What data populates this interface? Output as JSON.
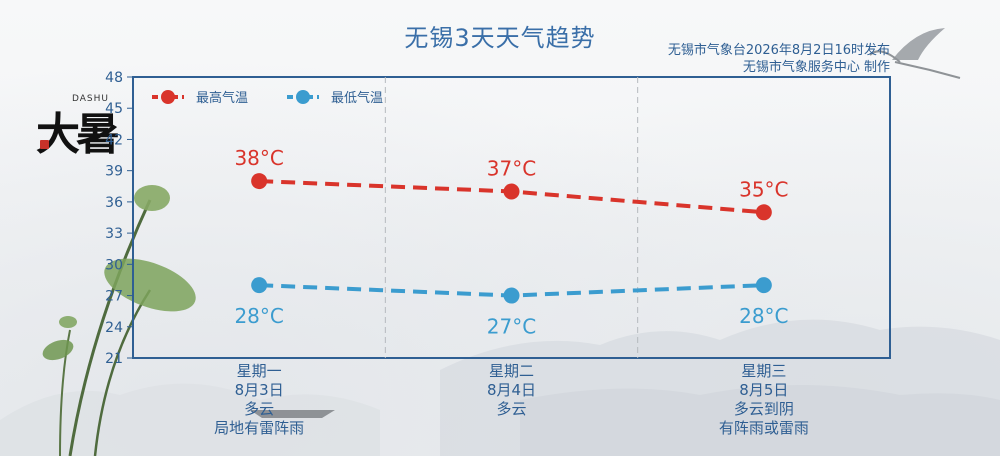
{
  "title": "无锡3天天气趋势",
  "publisher": {
    "line1": "无锡市气象台2026年8月2日16时发布",
    "line2": "无锡市气象服务中心  制作"
  },
  "logo": {
    "text": "大暑",
    "latin": "DASHU"
  },
  "chart_data": {
    "type": "line",
    "categories": [
      "星期一",
      "星期二",
      "星期三"
    ],
    "series": [
      {
        "name": "最高气温",
        "values": [
          38,
          37,
          35
        ],
        "color": "#d9342b"
      },
      {
        "name": "最低气温",
        "values": [
          28,
          27,
          28
        ],
        "color": "#3b9ccf"
      }
    ],
    "y_ticks": [
      21,
      24,
      27,
      30,
      33,
      36,
      39,
      42,
      45,
      48
    ],
    "ylim": [
      21,
      48
    ],
    "unit": "°C",
    "legend_position": "top-left",
    "axis_color": "#2f5f93"
  },
  "days": [
    {
      "weekday": "星期一",
      "date": "8月3日",
      "weather1": "多云",
      "weather2": "局地有雷阵雨"
    },
    {
      "weekday": "星期二",
      "date": "8月4日",
      "weather1": "多云",
      "weather2": ""
    },
    {
      "weekday": "星期三",
      "date": "8月5日",
      "weather1": "多云到阴",
      "weather2": "有阵雨或雷雨"
    }
  ]
}
